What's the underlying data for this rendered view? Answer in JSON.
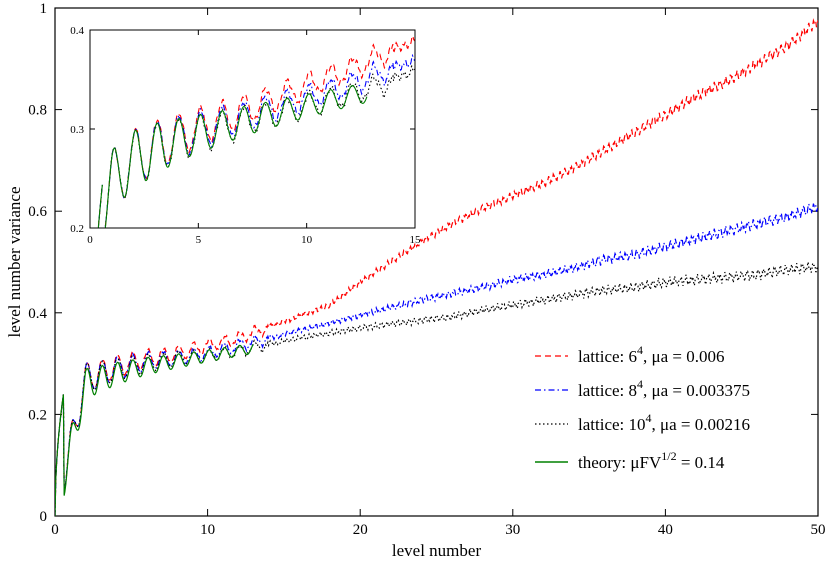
{
  "chart_data": [
    {
      "id": "main",
      "type": "line",
      "title": "",
      "xlabel": "level number",
      "ylabel": "level number variance",
      "xlim": [
        0,
        50
      ],
      "ylim": [
        0,
        1
      ],
      "x_ticks": [
        0,
        10,
        20,
        30,
        40,
        50
      ],
      "x_tick_labels": [
        "0",
        "10",
        "20",
        "30",
        "40",
        "50"
      ],
      "y_ticks": [
        0,
        0.2,
        0.4,
        0.6,
        0.8,
        1
      ],
      "y_tick_labels": [
        "0",
        "0.2",
        "0.4",
        "0.6",
        "0.8",
        "1"
      ],
      "grid": false,
      "legend_position": "bottom-right",
      "series": [
        {
          "key": "l6",
          "name": "lattice: 6",
          "sup": "4",
          "param": ", μa = 0.006",
          "color": "#ff0000",
          "style": "dashed",
          "x": [
            0,
            2,
            4,
            6,
            8,
            10,
            12,
            14,
            16,
            18,
            20,
            22,
            24,
            26,
            28,
            30,
            32,
            34,
            36,
            38,
            40,
            42,
            44,
            46,
            48,
            50
          ],
          "values": [
            0,
            0.27,
            0.295,
            0.31,
            0.32,
            0.335,
            0.35,
            0.372,
            0.393,
            0.415,
            0.46,
            0.5,
            0.54,
            0.575,
            0.605,
            0.63,
            0.655,
            0.685,
            0.72,
            0.755,
            0.79,
            0.825,
            0.855,
            0.89,
            0.925,
            0.975
          ]
        },
        {
          "key": "l8",
          "name": "lattice: 8",
          "sup": "4",
          "param": ", μa = 0.003375",
          "color": "#0000ff",
          "style": "dashdot",
          "x": [
            0,
            2,
            4,
            6,
            8,
            10,
            12,
            14,
            16,
            18,
            20,
            22,
            24,
            26,
            28,
            30,
            32,
            34,
            36,
            38,
            40,
            42,
            44,
            46,
            48,
            50
          ],
          "values": [
            0,
            0.27,
            0.29,
            0.305,
            0.312,
            0.32,
            0.335,
            0.35,
            0.365,
            0.38,
            0.395,
            0.41,
            0.425,
            0.438,
            0.45,
            0.465,
            0.475,
            0.488,
            0.505,
            0.515,
            0.53,
            0.545,
            0.56,
            0.575,
            0.59,
            0.61
          ]
        },
        {
          "key": "l10",
          "name": "lattice: 10",
          "sup": "4",
          "param": ", μa = 0.00216",
          "color": "#000000",
          "style": "dotted",
          "x": [
            0,
            2,
            4,
            6,
            8,
            10,
            12,
            14,
            16,
            18,
            20,
            22,
            24,
            26,
            28,
            30,
            32,
            34,
            36,
            38,
            40,
            42,
            44,
            46,
            48,
            50
          ],
          "values": [
            0,
            0.27,
            0.288,
            0.3,
            0.31,
            0.315,
            0.325,
            0.338,
            0.35,
            0.36,
            0.37,
            0.378,
            0.385,
            0.392,
            0.405,
            0.415,
            0.425,
            0.435,
            0.445,
            0.45,
            0.46,
            0.465,
            0.47,
            0.475,
            0.485,
            0.49
          ]
        },
        {
          "key": "th",
          "name": "theory: μFV",
          "sup": "1/2",
          "param": " = 0.14",
          "color": "#008000",
          "style": "solid",
          "x": [
            0,
            2,
            4,
            6,
            8,
            10,
            12,
            13
          ],
          "values": [
            0,
            0.26,
            0.28,
            0.295,
            0.305,
            0.315,
            0.325,
            0.33
          ]
        }
      ]
    },
    {
      "id": "inset",
      "type": "line",
      "title": "",
      "xlim": [
        0,
        15
      ],
      "ylim": [
        0.2,
        0.4
      ],
      "x_ticks": [
        0,
        5,
        10,
        15
      ],
      "x_tick_labels": [
        "0",
        "5",
        "10",
        "15"
      ],
      "y_ticks": [
        0.2,
        0.3,
        0.4
      ],
      "y_tick_labels": [
        "0.2",
        "0.3",
        "0.4"
      ],
      "grid": false,
      "series": [
        {
          "key": "l6",
          "name": "lattice: 6^4",
          "color": "#ff0000",
          "style": "dashed",
          "x": [
            0,
            1.5,
            3,
            4.5,
            6,
            7.5,
            9,
            10.5,
            12,
            13.5,
            15
          ],
          "values": [
            0.2,
            0.262,
            0.283,
            0.298,
            0.31,
            0.322,
            0.335,
            0.348,
            0.36,
            0.375,
            0.39
          ]
        },
        {
          "key": "l8",
          "name": "lattice: 8^4",
          "color": "#0000ff",
          "style": "dashdot",
          "x": [
            0,
            1.5,
            3,
            4.5,
            6,
            7.5,
            9,
            10.5,
            12,
            13.5,
            15
          ],
          "values": [
            0.2,
            0.262,
            0.282,
            0.295,
            0.305,
            0.315,
            0.325,
            0.335,
            0.345,
            0.357,
            0.37
          ]
        },
        {
          "key": "l10",
          "name": "lattice: 10^4",
          "color": "#000000",
          "style": "dotted",
          "x": [
            0,
            1.5,
            3,
            4.5,
            6,
            7.5,
            9,
            10.5,
            12,
            13.5,
            15
          ],
          "values": [
            0.2,
            0.262,
            0.28,
            0.292,
            0.3,
            0.31,
            0.318,
            0.327,
            0.335,
            0.345,
            0.36
          ]
        },
        {
          "key": "th",
          "name": "theory",
          "color": "#008000",
          "style": "solid",
          "x": [
            0,
            1.5,
            3,
            4.5,
            6,
            7.5,
            9,
            10.5,
            12,
            12.8
          ],
          "values": [
            0.2,
            0.262,
            0.28,
            0.292,
            0.301,
            0.31,
            0.318,
            0.326,
            0.333,
            0.337
          ]
        }
      ]
    }
  ]
}
